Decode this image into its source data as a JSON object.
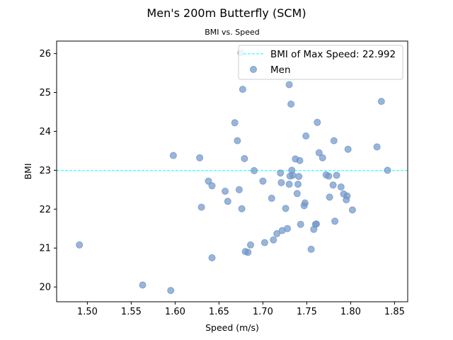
{
  "chart_data": {
    "type": "scatter",
    "title": "Men's 200m Butterfly (SCM)",
    "subtitle": "BMI vs. Speed",
    "xlabel": "Speed (m/s)",
    "ylabel": "BMI",
    "xlim": [
      1.465,
      1.865
    ],
    "ylim": [
      19.62,
      26.32
    ],
    "xticks": [
      "1.50",
      "1.55",
      "1.60",
      "1.65",
      "1.70",
      "1.75",
      "1.80",
      "1.85"
    ],
    "yticks": [
      "20",
      "21",
      "22",
      "23",
      "24",
      "25",
      "26"
    ],
    "grid": false,
    "legend_position": "top-right",
    "hline": {
      "label": "BMI of Max Speed: 22.992",
      "value": 22.992,
      "color": "#00ffff"
    },
    "series": [
      {
        "name": "Men",
        "color": "#6f96c8",
        "points": [
          [
            1.491,
            21.08
          ],
          [
            1.563,
            20.05
          ],
          [
            1.595,
            19.91
          ],
          [
            1.598,
            23.38
          ],
          [
            1.628,
            23.32
          ],
          [
            1.63,
            22.05
          ],
          [
            1.638,
            22.72
          ],
          [
            1.642,
            22.6
          ],
          [
            1.642,
            20.75
          ],
          [
            1.657,
            22.46
          ],
          [
            1.66,
            22.2
          ],
          [
            1.668,
            24.22
          ],
          [
            1.671,
            23.76
          ],
          [
            1.673,
            22.5
          ],
          [
            1.675,
            26.02
          ],
          [
            1.676,
            22.01
          ],
          [
            1.677,
            25.08
          ],
          [
            1.679,
            23.3
          ],
          [
            1.68,
            20.91
          ],
          [
            1.683,
            20.89
          ],
          [
            1.686,
            21.08
          ],
          [
            1.69,
            22.99
          ],
          [
            1.7,
            22.72
          ],
          [
            1.702,
            21.14
          ],
          [
            1.71,
            22.28
          ],
          [
            1.712,
            21.21
          ],
          [
            1.716,
            21.37
          ],
          [
            1.72,
            22.93
          ],
          [
            1.721,
            22.68
          ],
          [
            1.722,
            21.45
          ],
          [
            1.726,
            22.02
          ],
          [
            1.728,
            21.5
          ],
          [
            1.73,
            25.2
          ],
          [
            1.73,
            22.64
          ],
          [
            1.731,
            22.85
          ],
          [
            1.732,
            24.7
          ],
          [
            1.733,
            23.0
          ],
          [
            1.734,
            22.87
          ],
          [
            1.737,
            23.29
          ],
          [
            1.739,
            22.4
          ],
          [
            1.74,
            22.64
          ],
          [
            1.741,
            22.84
          ],
          [
            1.742,
            23.25
          ],
          [
            1.743,
            21.61
          ],
          [
            1.747,
            22.09
          ],
          [
            1.748,
            22.16
          ],
          [
            1.749,
            23.88
          ],
          [
            1.755,
            20.97
          ],
          [
            1.758,
            21.48
          ],
          [
            1.76,
            21.61
          ],
          [
            1.761,
            21.62
          ],
          [
            1.762,
            24.23
          ],
          [
            1.764,
            23.45
          ],
          [
            1.768,
            23.32
          ],
          [
            1.772,
            22.88
          ],
          [
            1.775,
            22.85
          ],
          [
            1.776,
            22.31
          ],
          [
            1.78,
            22.62
          ],
          [
            1.781,
            23.76
          ],
          [
            1.782,
            21.69
          ],
          [
            1.784,
            22.87
          ],
          [
            1.789,
            22.57
          ],
          [
            1.792,
            22.39
          ],
          [
            1.795,
            22.24
          ],
          [
            1.796,
            22.34
          ],
          [
            1.797,
            23.54
          ],
          [
            1.802,
            21.98
          ],
          [
            1.83,
            23.6
          ],
          [
            1.835,
            24.77
          ],
          [
            1.842,
            23.0
          ]
        ]
      }
    ]
  }
}
